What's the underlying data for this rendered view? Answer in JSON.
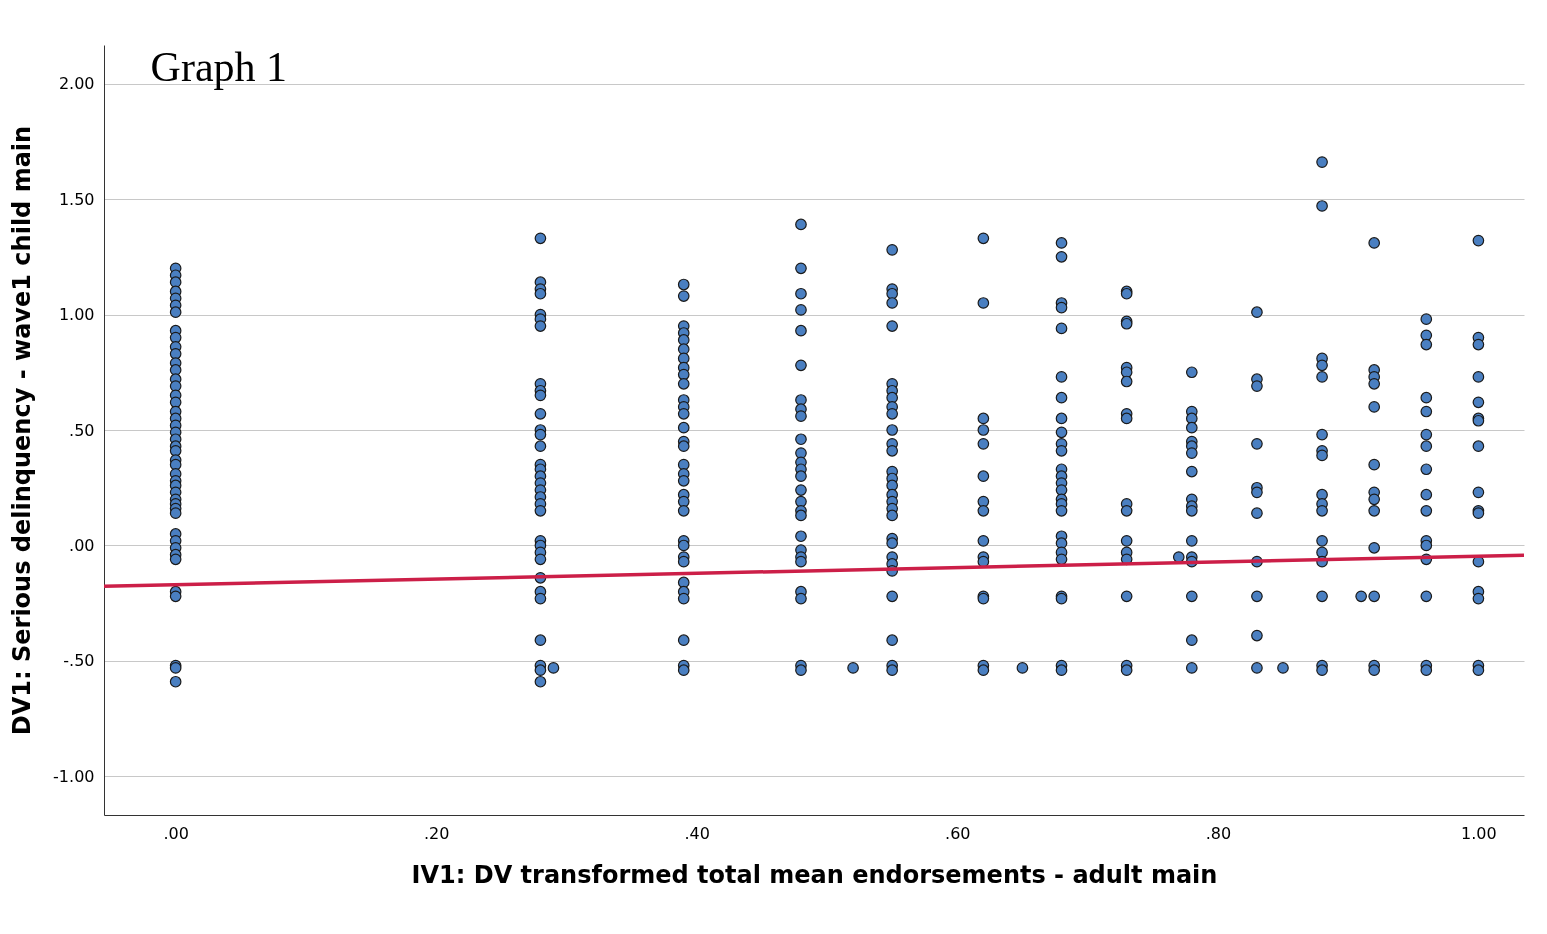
{
  "chart_data": {
    "type": "scatter",
    "title": "Graph 1",
    "xlabel": "IV1: DV transformed total mean endorsements - adult main",
    "ylabel": "DV1: Serious delinquency - wave1 child main",
    "xlim": [
      -0.055,
      1.035
    ],
    "ylim": [
      -1.167,
      2.167
    ],
    "xticks": [
      {
        "value": 0,
        "label": ".00"
      },
      {
        "value": 0.2,
        "label": ".20"
      },
      {
        "value": 0.4,
        "label": ".40"
      },
      {
        "value": 0.6,
        "label": ".60"
      },
      {
        "value": 0.8,
        "label": ".80"
      },
      {
        "value": 1,
        "label": "1.00"
      }
    ],
    "yticks": [
      {
        "value": -1,
        "label": "-1.00"
      },
      {
        "value": -0.5,
        "label": "-.50"
      },
      {
        "value": 0,
        "label": ".00"
      },
      {
        "value": 0.5,
        "label": ".50"
      },
      {
        "value": 1,
        "label": "1.00"
      },
      {
        "value": 1.5,
        "label": "1.50"
      },
      {
        "value": 2,
        "label": "2.00"
      }
    ],
    "grid": "y",
    "series": [
      {
        "color": "#4a7fc1",
        "marker": "circle",
        "x": [
          0,
          0,
          0,
          0,
          0,
          0,
          0,
          0,
          0,
          0,
          0,
          0,
          0,
          0,
          0,
          0,
          0,
          0,
          0,
          0,
          0,
          0,
          0,
          0,
          0,
          0,
          0,
          0,
          0,
          0,
          0,
          0,
          0,
          0,
          0,
          0,
          0,
          0,
          0,
          0,
          0,
          0,
          0,
          0,
          0.28,
          0.28,
          0.28,
          0.28,
          0.28,
          0.28,
          0.28,
          0.28,
          0.28,
          0.28,
          0.28,
          0.28,
          0.28,
          0.28,
          0.28,
          0.28,
          0.28,
          0.28,
          0.28,
          0.28,
          0.28,
          0.28,
          0.28,
          0.28,
          0.28,
          0.28,
          0.28,
          0.28,
          0.28,
          0.28,
          0.28,
          0.28,
          0.28,
          0.29,
          0.39,
          0.39,
          0.39,
          0.39,
          0.39,
          0.39,
          0.39,
          0.39,
          0.39,
          0.39,
          0.39,
          0.39,
          0.39,
          0.39,
          0.39,
          0.39,
          0.39,
          0.39,
          0.39,
          0.39,
          0.39,
          0.39,
          0.39,
          0.39,
          0.39,
          0.39,
          0.39,
          0.39,
          0.39,
          0.39,
          0.39,
          0.39,
          0.48,
          0.48,
          0.48,
          0.48,
          0.48,
          0.48,
          0.48,
          0.48,
          0.48,
          0.48,
          0.48,
          0.48,
          0.48,
          0.48,
          0.48,
          0.48,
          0.48,
          0.48,
          0.48,
          0.48,
          0.48,
          0.48,
          0.48,
          0.48,
          0.48,
          0.48,
          0.52,
          0.55,
          0.55,
          0.55,
          0.55,
          0.55,
          0.55,
          0.55,
          0.55,
          0.55,
          0.55,
          0.55,
          0.55,
          0.55,
          0.55,
          0.55,
          0.55,
          0.55,
          0.55,
          0.55,
          0.55,
          0.55,
          0.55,
          0.55,
          0.55,
          0.55,
          0.55,
          0.55,
          0.55,
          0.55,
          0.62,
          0.62,
          0.62,
          0.62,
          0.62,
          0.62,
          0.62,
          0.62,
          0.62,
          0.62,
          0.62,
          0.62,
          0.62,
          0.62,
          0.62,
          0.65,
          0.68,
          0.68,
          0.68,
          0.68,
          0.68,
          0.68,
          0.68,
          0.68,
          0.68,
          0.68,
          0.68,
          0.68,
          0.68,
          0.68,
          0.68,
          0.68,
          0.68,
          0.68,
          0.68,
          0.68,
          0.68,
          0.68,
          0.68,
          0.68,
          0.68,
          0.68,
          0.73,
          0.73,
          0.73,
          0.73,
          0.73,
          0.73,
          0.73,
          0.73,
          0.73,
          0.73,
          0.73,
          0.73,
          0.73,
          0.73,
          0.73,
          0.73,
          0.73,
          0.78,
          0.78,
          0.78,
          0.78,
          0.78,
          0.78,
          0.78,
          0.78,
          0.78,
          0.78,
          0.78,
          0.78,
          0.78,
          0.78,
          0.78,
          0.78,
          0.78,
          0.77,
          0.83,
          0.83,
          0.83,
          0.83,
          0.83,
          0.83,
          0.83,
          0.83,
          0.83,
          0.83,
          0.83,
          0.85,
          0.88,
          0.88,
          0.88,
          0.88,
          0.88,
          0.88,
          0.88,
          0.88,
          0.88,
          0.88,
          0.88,
          0.88,
          0.88,
          0.88,
          0.88,
          0.88,
          0.88,
          0.92,
          0.92,
          0.92,
          0.92,
          0.92,
          0.92,
          0.92,
          0.92,
          0.92,
          0.92,
          0.92,
          0.92,
          0.92,
          0.91,
          0.96,
          0.96,
          0.96,
          0.96,
          0.96,
          0.96,
          0.96,
          0.96,
          0.96,
          0.96,
          0.96,
          0.96,
          0.96,
          0.96,
          0.96,
          0.96,
          1,
          1,
          1,
          1,
          1,
          1,
          1,
          1,
          1,
          1,
          1,
          1,
          1,
          1,
          1,
          1
        ],
        "values": [
          1.2,
          1.17,
          1.14,
          1.1,
          1.07,
          1.04,
          1.01,
          0.93,
          0.9,
          0.86,
          0.83,
          0.79,
          0.76,
          0.72,
          0.69,
          0.65,
          0.62,
          0.58,
          0.55,
          0.52,
          0.49,
          0.46,
          0.43,
          0.41,
          0.37,
          0.35,
          0.31,
          0.28,
          0.26,
          0.23,
          0.2,
          0.18,
          0.16,
          0.14,
          0.05,
          0.02,
          -0.01,
          -0.04,
          -0.06,
          -0.2,
          -0.22,
          -0.52,
          -0.53,
          -0.59,
          1.33,
          1.14,
          1.11,
          1.09,
          1.0,
          0.98,
          0.95,
          0.7,
          0.67,
          0.65,
          0.57,
          0.5,
          0.48,
          0.43,
          0.35,
          0.33,
          0.3,
          0.27,
          0.24,
          0.21,
          0.18,
          0.15,
          0.02,
          0.0,
          -0.03,
          -0.06,
          -0.14,
          -0.2,
          -0.23,
          -0.41,
          -0.52,
          -0.54,
          -0.59,
          -0.53,
          1.13,
          1.08,
          0.95,
          0.92,
          0.89,
          0.85,
          0.81,
          0.77,
          0.74,
          0.7,
          0.63,
          0.6,
          0.57,
          0.51,
          0.45,
          0.43,
          0.35,
          0.31,
          0.28,
          0.22,
          0.19,
          0.15,
          0.02,
          0.0,
          -0.05,
          -0.07,
          -0.16,
          -0.2,
          -0.23,
          -0.41,
          -0.52,
          -0.54,
          1.39,
          1.2,
          1.09,
          1.02,
          0.93,
          0.78,
          0.63,
          0.59,
          0.56,
          0.46,
          0.4,
          0.36,
          0.33,
          0.3,
          0.24,
          0.19,
          0.15,
          0.13,
          0.04,
          -0.02,
          -0.05,
          -0.07,
          -0.2,
          -0.23,
          -0.52,
          -0.54,
          -0.53,
          1.28,
          1.11,
          1.09,
          1.05,
          0.95,
          0.7,
          0.67,
          0.64,
          0.6,
          0.57,
          0.5,
          0.44,
          0.41,
          0.32,
          0.29,
          0.26,
          0.22,
          0.19,
          0.16,
          0.13,
          0.03,
          0.01,
          -0.05,
          -0.08,
          -0.11,
          -0.22,
          -0.41,
          -0.52,
          -0.54,
          1.33,
          1.05,
          0.55,
          0.5,
          0.44,
          0.3,
          0.19,
          0.15,
          0.02,
          -0.05,
          -0.07,
          -0.22,
          -0.23,
          -0.52,
          -0.54,
          -0.53,
          1.31,
          1.25,
          1.05,
          1.03,
          0.94,
          0.73,
          0.64,
          0.55,
          0.49,
          0.44,
          0.41,
          0.33,
          0.3,
          0.27,
          0.24,
          0.2,
          0.18,
          0.15,
          0.04,
          0.01,
          -0.03,
          -0.06,
          -0.22,
          -0.23,
          -0.52,
          -0.54,
          1.1,
          1.09,
          0.97,
          0.96,
          0.77,
          0.75,
          0.71,
          0.57,
          0.55,
          0.18,
          0.15,
          0.02,
          -0.03,
          -0.06,
          -0.22,
          -0.52,
          -0.54,
          0.75,
          0.58,
          0.55,
          0.51,
          0.45,
          0.43,
          0.4,
          0.32,
          0.2,
          0.17,
          0.15,
          0.02,
          -0.05,
          -0.07,
          -0.22,
          -0.41,
          -0.53,
          -0.05,
          1.01,
          0.72,
          0.69,
          0.44,
          0.25,
          0.23,
          0.14,
          -0.07,
          -0.22,
          -0.39,
          -0.53,
          -0.53,
          1.66,
          1.47,
          0.81,
          0.78,
          0.73,
          0.48,
          0.41,
          0.39,
          0.22,
          0.18,
          0.15,
          0.02,
          -0.03,
          -0.07,
          -0.22,
          -0.52,
          -0.54,
          1.31,
          0.76,
          0.73,
          0.7,
          0.6,
          0.35,
          0.23,
          0.2,
          0.15,
          -0.01,
          -0.22,
          -0.52,
          -0.54,
          -0.22,
          0.98,
          0.91,
          0.87,
          0.64,
          0.58,
          0.48,
          0.43,
          0.33,
          0.22,
          0.15,
          0.02,
          0.0,
          -0.06,
          -0.22,
          -0.52,
          -0.54,
          1.32,
          0.9,
          0.87,
          0.73,
          0.62,
          0.55,
          0.54,
          0.43,
          0.23,
          0.15,
          0.14,
          -0.07,
          -0.2,
          -0.23,
          -0.52,
          -0.54
        ]
      },
      {
        "type": "line",
        "marker": "none",
        "color": "#cc1f48",
        "x": [
          -0.055,
          1.035
        ],
        "values": [
          -0.177,
          -0.042
        ]
      }
    ]
  }
}
